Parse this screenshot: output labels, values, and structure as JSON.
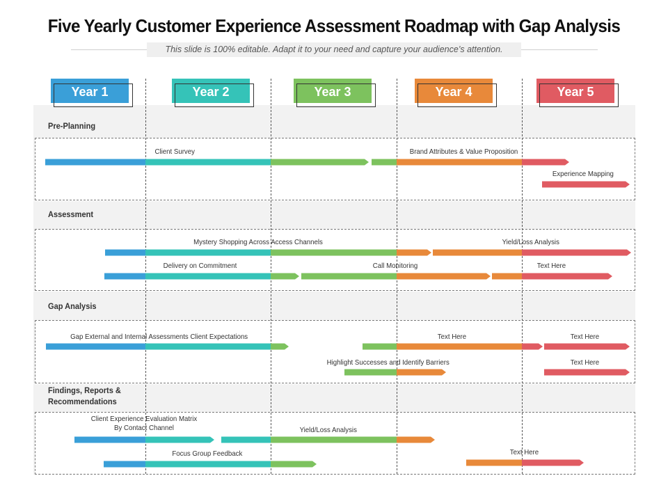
{
  "title": "Five Yearly Customer Experience Assessment Roadmap with Gap Analysis",
  "subtitle": "This slide is 100% editable. Adapt it to your need and capture your audience’s attention.",
  "colors": {
    "year1": "#3a9fd8",
    "year2": "#35c3b8",
    "year3": "#7dc25e",
    "year4": "#e8893a",
    "year5": "#e05b62"
  },
  "years": [
    "Year 1",
    "Year 2",
    "Year 3",
    "Year 4",
    "Year 5"
  ],
  "sections": [
    {
      "label": "Pre-Planning",
      "tasks": [
        {
          "label": "Client Survey"
        },
        {
          "label": "Brand Attributes & Value Proposition"
        },
        {
          "label": "Experience Mapping"
        }
      ]
    },
    {
      "label": "Assessment",
      "tasks": [
        {
          "label": "Mystery Shopping Across Access Channels"
        },
        {
          "label": "Yield/Loss Analysis"
        },
        {
          "label": "Delivery on Commitment"
        },
        {
          "label": "Call Monitoring"
        },
        {
          "label": "Text Here"
        }
      ]
    },
    {
      "label": "Gap Analysis",
      "tasks": [
        {
          "label": "Gap External and Internal Assessments Client Expectations"
        },
        {
          "label": "Text Here"
        },
        {
          "label": "Text Here"
        },
        {
          "label": "Highlight Successes and Identify Barriers"
        },
        {
          "label": "Text Here"
        }
      ]
    },
    {
      "label": "Findings, Reports & Recommendations",
      "tasks": [
        {
          "label": "Client Experience Evaluation Matrix By Contact Channel"
        },
        {
          "label": "Yield/Loss Analysis"
        },
        {
          "label": "Focus Group Feedback"
        },
        {
          "label": "Text Here"
        }
      ]
    }
  ]
}
